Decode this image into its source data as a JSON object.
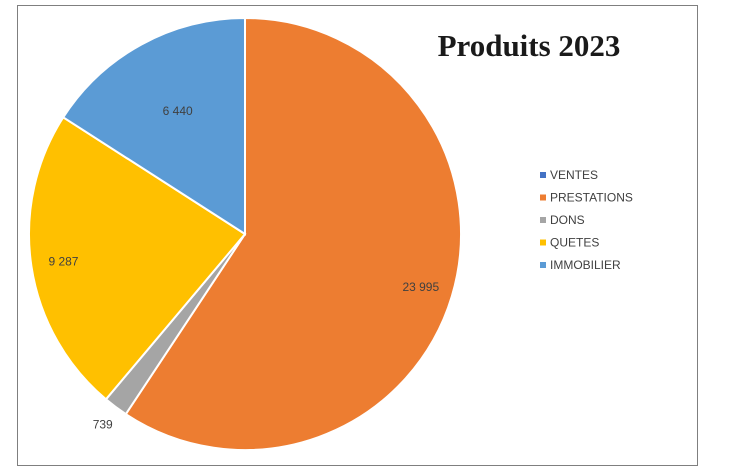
{
  "chart_data": {
    "type": "pie",
    "title": "Produits 2023",
    "categories": [
      "VENTES",
      "PRESTATIONS",
      "DONS",
      "QUETES",
      "IMMOBILIER"
    ],
    "values": [
      0,
      23995,
      739,
      9287,
      6440
    ],
    "data_labels": [
      "",
      "23 995",
      "739",
      "9 287",
      "6 440"
    ],
    "colors": [
      "#4472c4",
      "#ed7d31",
      "#a5a5a5",
      "#ffc000",
      "#5b9bd5"
    ],
    "start_angle_deg": 0,
    "direction": "clockwise",
    "legend_position": "right"
  }
}
